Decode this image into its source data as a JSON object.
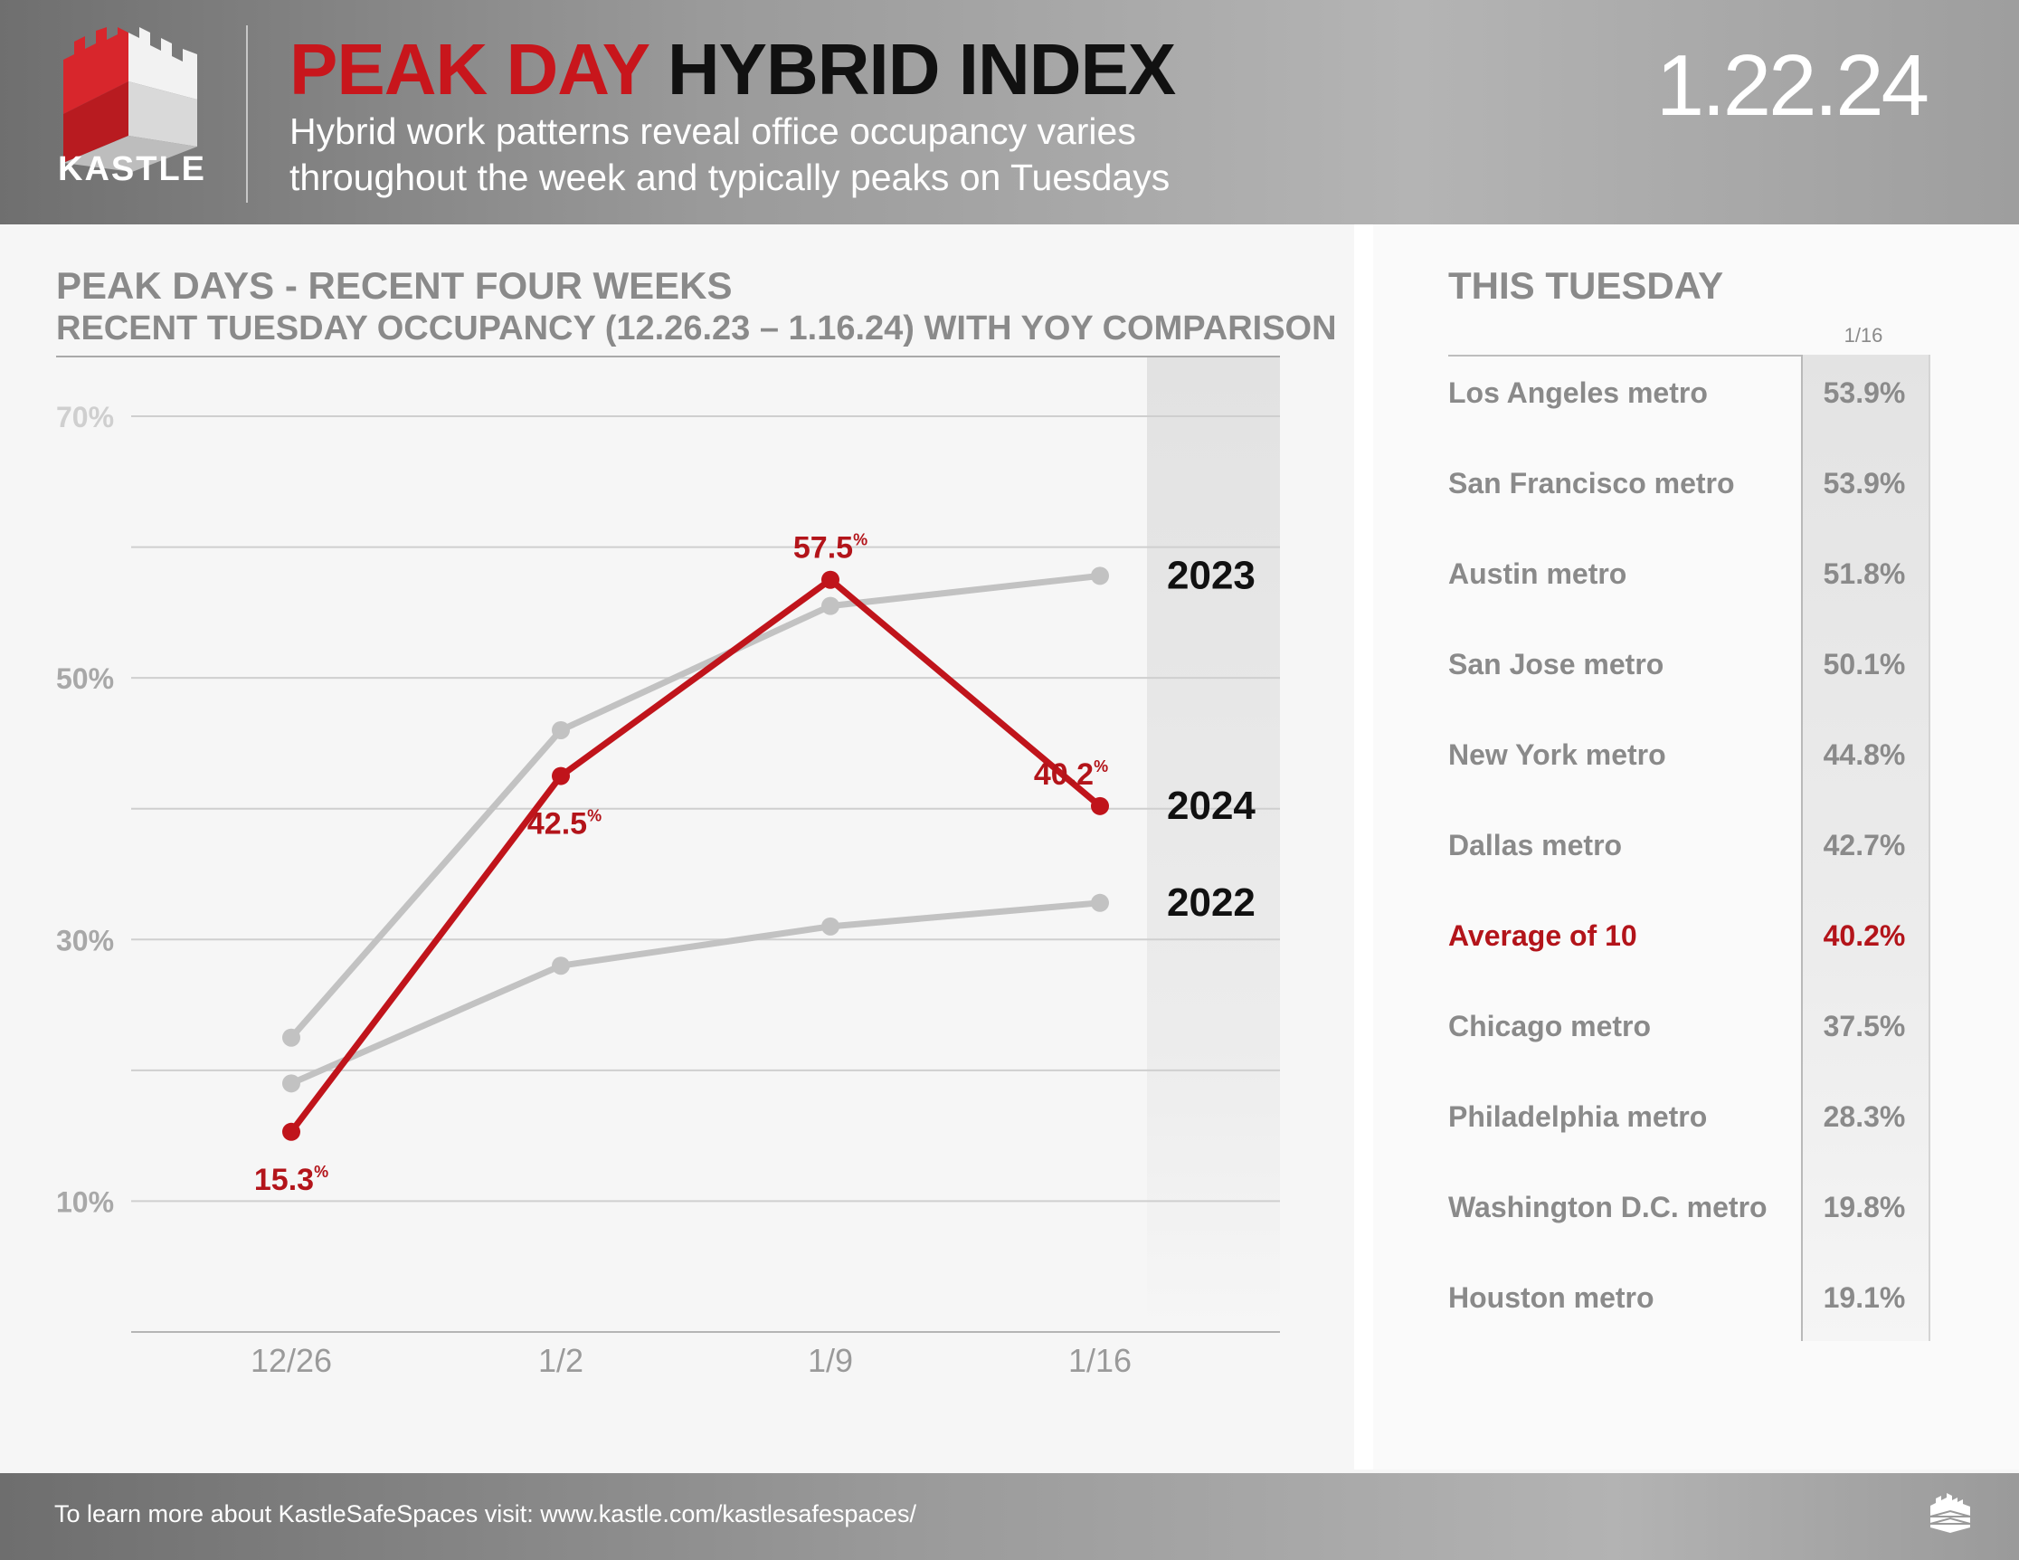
{
  "header": {
    "logo_text": "KASTLE",
    "title_red": "PEAK DAY",
    "title_black": "HYBRID INDEX",
    "subtitle_line1": "Hybrid work patterns reveal office occupancy varies",
    "subtitle_line2": "throughout the week and typically peaks on Tuesdays",
    "date": "1.22.24"
  },
  "colors": {
    "accent_red": "#c8161c",
    "series_gray": "#c2c2c2",
    "text_gray": "#8a8a8a"
  },
  "chart_data": {
    "type": "line",
    "title": "PEAK DAYS - RECENT FOUR WEEKS",
    "subtitle": "RECENT TUESDAY OCCUPANCY (12.26.23 – 1.16.24) WITH YOY COMPARISON",
    "categories": [
      "12/26",
      "1/2",
      "1/9",
      "1/16"
    ],
    "ylim": [
      0,
      70
    ],
    "yticks": [
      10,
      30,
      50,
      70
    ],
    "ytick_labels": [
      "10%",
      "30%",
      "50%",
      "70%"
    ],
    "grid": true,
    "series": [
      {
        "name": "2023",
        "values": [
          22.5,
          46.0,
          55.5,
          57.8
        ],
        "color": "#c2c2c2",
        "labels": false
      },
      {
        "name": "2022",
        "values": [
          19.0,
          28.0,
          31.0,
          32.8
        ],
        "color": "#c2c2c2",
        "labels": false
      },
      {
        "name": "2024",
        "values": [
          15.3,
          42.5,
          57.5,
          40.2
        ],
        "color": "#c0141b",
        "labels": true,
        "value_labels": [
          "15.3",
          "42.5",
          "57.5",
          "40.2"
        ],
        "label_suffix": "%"
      }
    ],
    "label_placement": [
      "below",
      "below",
      "above",
      "above"
    ]
  },
  "this_tuesday": {
    "title": "THIS TUESDAY",
    "column_header": "1/16",
    "rows": [
      {
        "city": "Los Angeles metro",
        "value": "53.9%"
      },
      {
        "city": "San Francisco metro",
        "value": "53.9%"
      },
      {
        "city": "Austin metro",
        "value": "51.8%"
      },
      {
        "city": "San Jose metro",
        "value": "50.1%"
      },
      {
        "city": "New York metro",
        "value": "44.8%"
      },
      {
        "city": "Dallas metro",
        "value": "42.7%"
      },
      {
        "city": "Average of 10",
        "value": "40.2%",
        "highlight": true
      },
      {
        "city": "Chicago metro",
        "value": "37.5%"
      },
      {
        "city": "Philadelphia metro",
        "value": "28.3%"
      },
      {
        "city": "Washington D.C. metro",
        "value": "19.8%"
      },
      {
        "city": "Houston metro",
        "value": "19.1%"
      }
    ]
  },
  "footer": {
    "text": "To learn more about KastleSafeSpaces visit: www.kastle.com/kastlesafespaces/"
  }
}
